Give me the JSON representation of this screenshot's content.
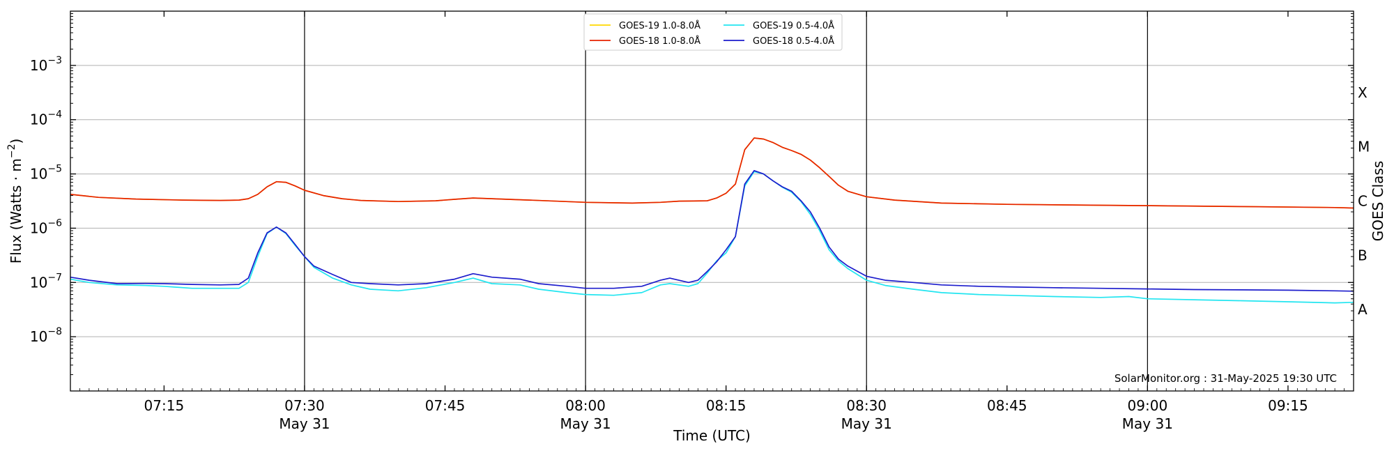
{
  "chart_data": {
    "type": "line",
    "x_axis": {
      "label": "Time (UTC)",
      "start": "07:05",
      "end": "09:22",
      "major_ticks": [
        {
          "time": "07:15",
          "label": "07:15",
          "sublabel": ""
        },
        {
          "time": "07:30",
          "label": "07:30",
          "sublabel": "May 31"
        },
        {
          "time": "07:45",
          "label": "07:45",
          "sublabel": ""
        },
        {
          "time": "08:00",
          "label": "08:00",
          "sublabel": "May 31"
        },
        {
          "time": "08:15",
          "label": "08:15",
          "sublabel": ""
        },
        {
          "time": "08:30",
          "label": "08:30",
          "sublabel": "May 31"
        },
        {
          "time": "08:45",
          "label": "08:45",
          "sublabel": ""
        },
        {
          "time": "09:00",
          "label": "09:00",
          "sublabel": "May 31"
        },
        {
          "time": "09:15",
          "label": "09:15",
          "sublabel": ""
        }
      ],
      "vertical_lines": [
        "07:30",
        "08:00",
        "08:30",
        "09:00"
      ]
    },
    "y_axis": {
      "label": "Flux (Watts · m",
      "label_sup": "−2",
      "label_end": ")",
      "scale": "log",
      "range": [
        1e-09,
        0.01
      ],
      "ticks": [
        {
          "value": 1e-08,
          "base": "10",
          "exp": "−8"
        },
        {
          "value": 1e-07,
          "base": "10",
          "exp": "−7"
        },
        {
          "value": 1e-06,
          "base": "10",
          "exp": "−6"
        },
        {
          "value": 1e-05,
          "base": "10",
          "exp": "−5"
        },
        {
          "value": 0.0001,
          "base": "10",
          "exp": "−4"
        },
        {
          "value": 0.001,
          "base": "10",
          "exp": "−3"
        }
      ],
      "grid": true
    },
    "right_axis": {
      "label": "GOES Class",
      "classes": [
        {
          "label": "A",
          "value": 3.16e-08
        },
        {
          "label": "B",
          "value": 3.16e-07
        },
        {
          "label": "C",
          "value": 3.16e-06
        },
        {
          "label": "M",
          "value": 3.16e-05
        },
        {
          "label": "X",
          "value": 0.000316
        }
      ]
    },
    "legend": {
      "placement": "top-center",
      "columns": 2
    },
    "series": [
      {
        "name": "GOES-19 1.0-8.0Å",
        "color": "#ffd700",
        "points": [
          [
            "07:05",
            4.2e-06
          ],
          [
            "07:08",
            3.7e-06
          ],
          [
            "07:12",
            3.45e-06
          ],
          [
            "07:17",
            3.3e-06
          ],
          [
            "07:21",
            3.25e-06
          ],
          [
            "07:23",
            3.3e-06
          ],
          [
            "07:24",
            3.5e-06
          ],
          [
            "07:25",
            4.2e-06
          ],
          [
            "07:26",
            5.8e-06
          ],
          [
            "07:27",
            7.2e-06
          ],
          [
            "07:28",
            7e-06
          ],
          [
            "07:29",
            6e-06
          ],
          [
            "07:30",
            5e-06
          ],
          [
            "07:32",
            4e-06
          ],
          [
            "07:34",
            3.5e-06
          ],
          [
            "07:36",
            3.25e-06
          ],
          [
            "07:40",
            3.1e-06
          ],
          [
            "07:44",
            3.2e-06
          ],
          [
            "07:46",
            3.4e-06
          ],
          [
            "07:48",
            3.6e-06
          ],
          [
            "07:50",
            3.5e-06
          ],
          [
            "07:54",
            3.3e-06
          ],
          [
            "08:00",
            3e-06
          ],
          [
            "08:05",
            2.9e-06
          ],
          [
            "08:08",
            3e-06
          ],
          [
            "08:10",
            3.15e-06
          ],
          [
            "08:13",
            3.2e-06
          ],
          [
            "08:14",
            3.6e-06
          ],
          [
            "08:15",
            4.4e-06
          ],
          [
            "08:16",
            6.5e-06
          ],
          [
            "08:17",
            2.8e-05
          ],
          [
            "08:18",
            4.6e-05
          ],
          [
            "08:19",
            4.4e-05
          ],
          [
            "08:20",
            3.8e-05
          ],
          [
            "08:21",
            3.1e-05
          ],
          [
            "08:22",
            2.7e-05
          ],
          [
            "08:23",
            2.3e-05
          ],
          [
            "08:24",
            1.8e-05
          ],
          [
            "08:25",
            1.3e-05
          ],
          [
            "08:26",
            9e-06
          ],
          [
            "08:27",
            6.2e-06
          ],
          [
            "08:28",
            4.8e-06
          ],
          [
            "08:30",
            3.8e-06
          ],
          [
            "08:33",
            3.3e-06
          ],
          [
            "08:38",
            2.9e-06
          ],
          [
            "08:45",
            2.75e-06
          ],
          [
            "08:55",
            2.65e-06
          ],
          [
            "09:00",
            2.6e-06
          ],
          [
            "09:10",
            2.5e-06
          ],
          [
            "09:20",
            2.4e-06
          ],
          [
            "09:22",
            2.35e-06
          ]
        ]
      },
      {
        "name": "GOES-18 1.0-8.0Å",
        "color": "#e62200",
        "points": [
          [
            "07:05",
            4.2e-06
          ],
          [
            "07:08",
            3.7e-06
          ],
          [
            "07:12",
            3.45e-06
          ],
          [
            "07:17",
            3.3e-06
          ],
          [
            "07:21",
            3.25e-06
          ],
          [
            "07:23",
            3.3e-06
          ],
          [
            "07:24",
            3.5e-06
          ],
          [
            "07:25",
            4.2e-06
          ],
          [
            "07:26",
            5.8e-06
          ],
          [
            "07:27",
            7.2e-06
          ],
          [
            "07:28",
            7e-06
          ],
          [
            "07:29",
            6e-06
          ],
          [
            "07:30",
            5e-06
          ],
          [
            "07:32",
            4e-06
          ],
          [
            "07:34",
            3.5e-06
          ],
          [
            "07:36",
            3.25e-06
          ],
          [
            "07:40",
            3.1e-06
          ],
          [
            "07:44",
            3.2e-06
          ],
          [
            "07:46",
            3.4e-06
          ],
          [
            "07:48",
            3.6e-06
          ],
          [
            "07:50",
            3.5e-06
          ],
          [
            "07:54",
            3.3e-06
          ],
          [
            "08:00",
            3e-06
          ],
          [
            "08:05",
            2.9e-06
          ],
          [
            "08:08",
            3e-06
          ],
          [
            "08:10",
            3.15e-06
          ],
          [
            "08:13",
            3.2e-06
          ],
          [
            "08:14",
            3.6e-06
          ],
          [
            "08:15",
            4.4e-06
          ],
          [
            "08:16",
            6.5e-06
          ],
          [
            "08:17",
            2.8e-05
          ],
          [
            "08:18",
            4.6e-05
          ],
          [
            "08:19",
            4.4e-05
          ],
          [
            "08:20",
            3.8e-05
          ],
          [
            "08:21",
            3.1e-05
          ],
          [
            "08:22",
            2.7e-05
          ],
          [
            "08:23",
            2.3e-05
          ],
          [
            "08:24",
            1.8e-05
          ],
          [
            "08:25",
            1.3e-05
          ],
          [
            "08:26",
            9e-06
          ],
          [
            "08:27",
            6.2e-06
          ],
          [
            "08:28",
            4.8e-06
          ],
          [
            "08:30",
            3.8e-06
          ],
          [
            "08:33",
            3.3e-06
          ],
          [
            "08:38",
            2.9e-06
          ],
          [
            "08:45",
            2.75e-06
          ],
          [
            "08:55",
            2.65e-06
          ],
          [
            "09:00",
            2.6e-06
          ],
          [
            "09:10",
            2.5e-06
          ],
          [
            "09:20",
            2.4e-06
          ],
          [
            "09:22",
            2.35e-06
          ]
        ]
      },
      {
        "name": "GOES-19 0.5-4.0Å",
        "color": "#22e5f0",
        "points": [
          [
            "07:05",
            1.15e-07
          ],
          [
            "07:07",
            1e-07
          ],
          [
            "07:10",
            9e-08
          ],
          [
            "07:13",
            8.8e-08
          ],
          [
            "07:15",
            8.5e-08
          ],
          [
            "07:18",
            7.8e-08
          ],
          [
            "07:21",
            7.8e-08
          ],
          [
            "07:23",
            7.8e-08
          ],
          [
            "07:24",
            1e-07
          ],
          [
            "07:25",
            3e-07
          ],
          [
            "07:26",
            8e-07
          ],
          [
            "07:27",
            1.05e-06
          ],
          [
            "07:28",
            8e-07
          ],
          [
            "07:29",
            4.8e-07
          ],
          [
            "07:30",
            3e-07
          ],
          [
            "07:31",
            1.9e-07
          ],
          [
            "07:33",
            1.2e-07
          ],
          [
            "07:35",
            9e-08
          ],
          [
            "07:37",
            7.5e-08
          ],
          [
            "07:40",
            7e-08
          ],
          [
            "07:43",
            8e-08
          ],
          [
            "07:46",
            1e-07
          ],
          [
            "07:48",
            1.2e-07
          ],
          [
            "07:50",
            9.5e-08
          ],
          [
            "07:53",
            9e-08
          ],
          [
            "07:55",
            7.5e-08
          ],
          [
            "07:58",
            6.5e-08
          ],
          [
            "08:00",
            6e-08
          ],
          [
            "08:03",
            5.8e-08
          ],
          [
            "08:06",
            6.5e-08
          ],
          [
            "08:08",
            9e-08
          ],
          [
            "08:09",
            9.5e-08
          ],
          [
            "08:11",
            8.5e-08
          ],
          [
            "08:12",
            9.5e-08
          ],
          [
            "08:13",
            1.5e-07
          ],
          [
            "08:14",
            2.5e-07
          ],
          [
            "08:15",
            3.5e-07
          ],
          [
            "08:16",
            7e-07
          ],
          [
            "08:17",
            6e-06
          ],
          [
            "08:18",
            1.1e-05
          ],
          [
            "08:19",
            1e-05
          ],
          [
            "08:20",
            7.5e-06
          ],
          [
            "08:21",
            5.7e-06
          ],
          [
            "08:22",
            4.6e-06
          ],
          [
            "08:23",
            3.1e-06
          ],
          [
            "08:24",
            1.8e-06
          ],
          [
            "08:25",
            9e-07
          ],
          [
            "08:26",
            4e-07
          ],
          [
            "08:27",
            2.5e-07
          ],
          [
            "08:28",
            1.8e-07
          ],
          [
            "08:30",
            1.1e-07
          ],
          [
            "08:32",
            8.8e-08
          ],
          [
            "08:35",
            7.5e-08
          ],
          [
            "08:38",
            6.5e-08
          ],
          [
            "08:42",
            6e-08
          ],
          [
            "08:45",
            5.8e-08
          ],
          [
            "08:50",
            5.5e-08
          ],
          [
            "08:55",
            5.3e-08
          ],
          [
            "08:58",
            5.5e-08
          ],
          [
            "09:00",
            5e-08
          ],
          [
            "09:05",
            4.8e-08
          ],
          [
            "09:10",
            4.6e-08
          ],
          [
            "09:15",
            4.4e-08
          ],
          [
            "09:20",
            4.2e-08
          ],
          [
            "09:22",
            4.3e-08
          ]
        ]
      },
      {
        "name": "GOES-18 0.5-4.0Å",
        "color": "#1c1ccc",
        "points": [
          [
            "07:05",
            1.25e-07
          ],
          [
            "07:07",
            1.1e-07
          ],
          [
            "07:10",
            9.5e-08
          ],
          [
            "07:13",
            9.6e-08
          ],
          [
            "07:15",
            9.5e-08
          ],
          [
            "07:18",
            9.2e-08
          ],
          [
            "07:21",
            9e-08
          ],
          [
            "07:23",
            9.2e-08
          ],
          [
            "07:24",
            1.2e-07
          ],
          [
            "07:25",
            3.5e-07
          ],
          [
            "07:26",
            8.2e-07
          ],
          [
            "07:27",
            1.05e-06
          ],
          [
            "07:28",
            8.2e-07
          ],
          [
            "07:29",
            5e-07
          ],
          [
            "07:30",
            3e-07
          ],
          [
            "07:31",
            2e-07
          ],
          [
            "07:33",
            1.4e-07
          ],
          [
            "07:35",
            1e-07
          ],
          [
            "07:37",
            9.5e-08
          ],
          [
            "07:40",
            9e-08
          ],
          [
            "07:43",
            9.5e-08
          ],
          [
            "07:46",
            1.15e-07
          ],
          [
            "07:48",
            1.45e-07
          ],
          [
            "07:50",
            1.25e-07
          ],
          [
            "07:53",
            1.15e-07
          ],
          [
            "07:55",
            9.5e-08
          ],
          [
            "07:58",
            8.5e-08
          ],
          [
            "08:00",
            7.8e-08
          ],
          [
            "08:03",
            7.8e-08
          ],
          [
            "08:06",
            8.5e-08
          ],
          [
            "08:08",
            1.1e-07
          ],
          [
            "08:09",
            1.2e-07
          ],
          [
            "08:11",
            1e-07
          ],
          [
            "08:12",
            1.1e-07
          ],
          [
            "08:13",
            1.6e-07
          ],
          [
            "08:14",
            2.4e-07
          ],
          [
            "08:15",
            4e-07
          ],
          [
            "08:16",
            7e-07
          ],
          [
            "08:17",
            6.5e-06
          ],
          [
            "08:18",
            1.15e-05
          ],
          [
            "08:19",
            1e-05
          ],
          [
            "08:20",
            7.5e-06
          ],
          [
            "08:21",
            5.8e-06
          ],
          [
            "08:22",
            4.8e-06
          ],
          [
            "08:23",
            3.2e-06
          ],
          [
            "08:24",
            2e-06
          ],
          [
            "08:25",
            1e-06
          ],
          [
            "08:26",
            4.5e-07
          ],
          [
            "08:27",
            2.7e-07
          ],
          [
            "08:28",
            2e-07
          ],
          [
            "08:30",
            1.3e-07
          ],
          [
            "08:32",
            1.1e-07
          ],
          [
            "08:35",
            1e-07
          ],
          [
            "08:38",
            9e-08
          ],
          [
            "08:42",
            8.5e-08
          ],
          [
            "08:45",
            8.3e-08
          ],
          [
            "08:50",
            8e-08
          ],
          [
            "08:55",
            7.8e-08
          ],
          [
            "09:00",
            7.6e-08
          ],
          [
            "09:05",
            7.4e-08
          ],
          [
            "09:10",
            7.3e-08
          ],
          [
            "09:15",
            7.2e-08
          ],
          [
            "09:20",
            7e-08
          ],
          [
            "09:22",
            6.9e-08
          ]
        ]
      }
    ],
    "annotation": "SolarMonitor.org : 31-May-2025 19:30 UTC"
  }
}
